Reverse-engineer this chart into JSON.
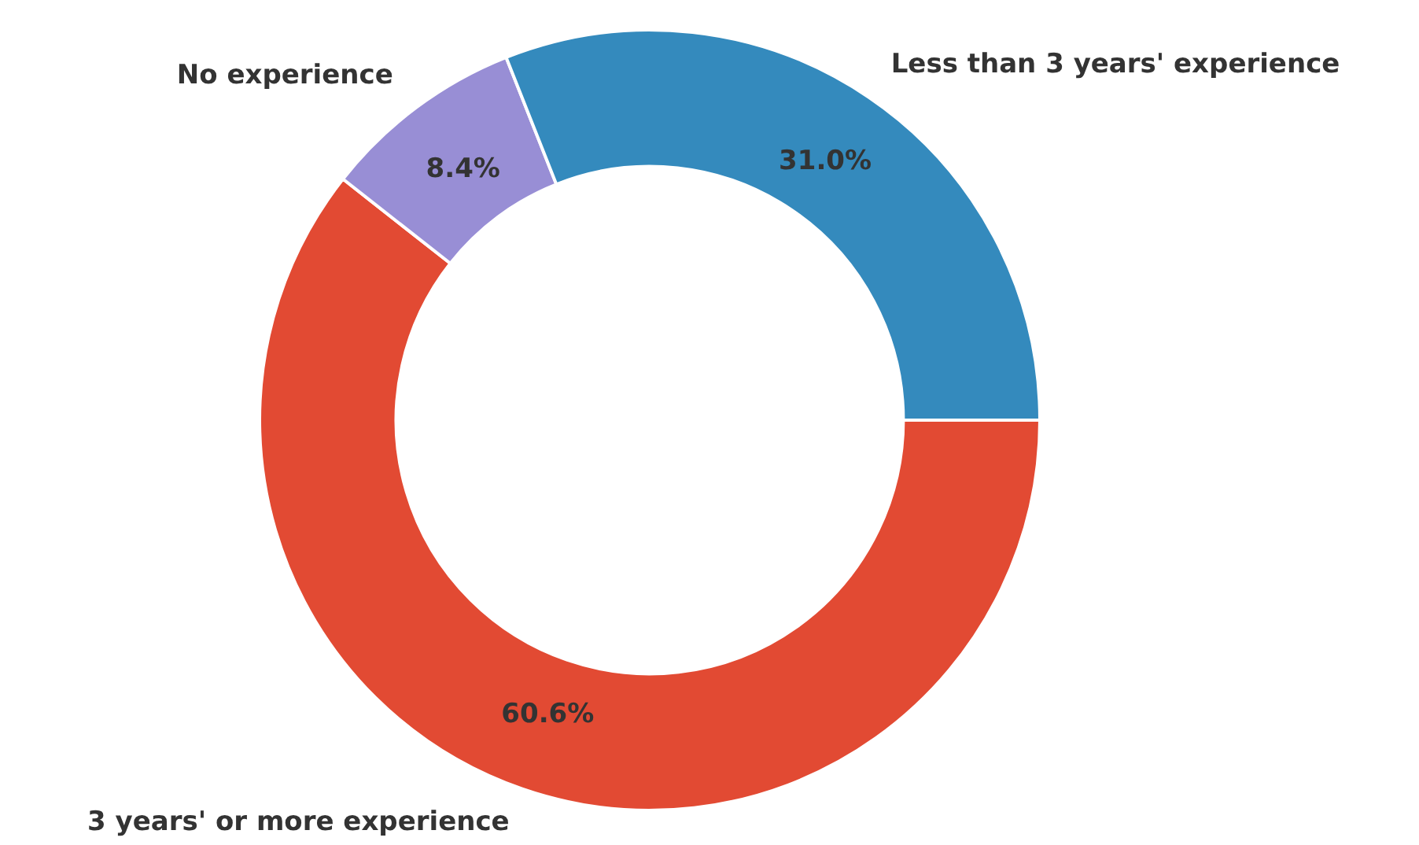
{
  "chart_data": {
    "type": "donut",
    "categories": [
      "3 years' or more experience",
      "No experience",
      "Less than 3 years' experience"
    ],
    "values": [
      60.6,
      8.4,
      31.0
    ],
    "colors": [
      "#e24a33",
      "#988ed5",
      "#348abd"
    ],
    "value_labels": [
      "60.6%",
      "8.4%",
      "31.0%"
    ],
    "legend": false
  }
}
